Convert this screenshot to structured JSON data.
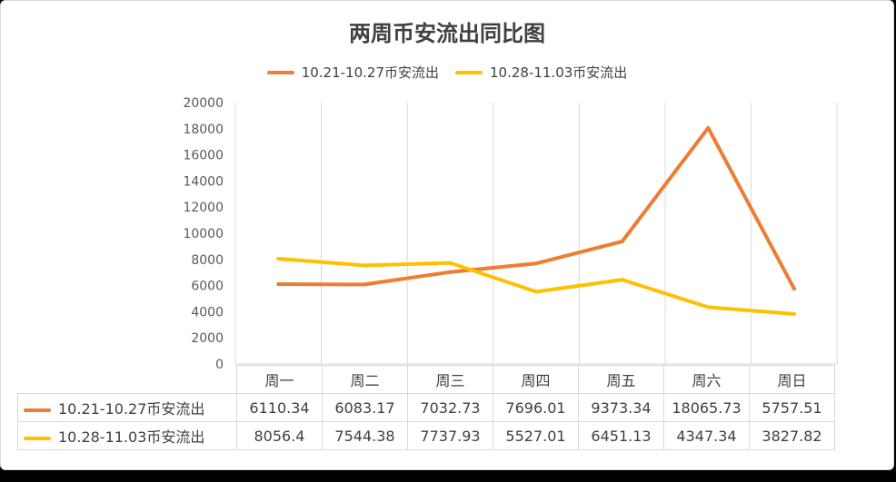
{
  "chart_data": {
    "type": "line",
    "title": "两周币安流出同比图",
    "categories": [
      "周一",
      "周二",
      "周三",
      "周四",
      "周五",
      "周六",
      "周日"
    ],
    "ylim": [
      0,
      20000
    ],
    "yticks": [
      "20000",
      "18000",
      "16000",
      "14000",
      "12000",
      "10000",
      "8000",
      "6000",
      "4000",
      "2000",
      "0"
    ],
    "grid": "vertical",
    "legend_position": "top",
    "data_table": true,
    "series": [
      {
        "name": "10.21-10.27币安流出",
        "color": "#ED7D31",
        "values": [
          6110.34,
          6083.17,
          7032.73,
          7696.01,
          9373.34,
          18065.73,
          5757.51
        ],
        "value_labels": [
          "6110.34",
          "6083.17",
          "7032.73",
          "7696.01",
          "9373.34",
          "18065.73",
          "5757.51"
        ]
      },
      {
        "name": "10.28-11.03币安流出",
        "color": "#FFC000",
        "values": [
          8056.4,
          7544.38,
          7737.93,
          5527.01,
          6451.13,
          4347.34,
          3827.82
        ],
        "value_labels": [
          "8056.4",
          "7544.38",
          "7737.93",
          "5527.01",
          "6451.13",
          "4347.34",
          "3827.82"
        ]
      }
    ]
  }
}
